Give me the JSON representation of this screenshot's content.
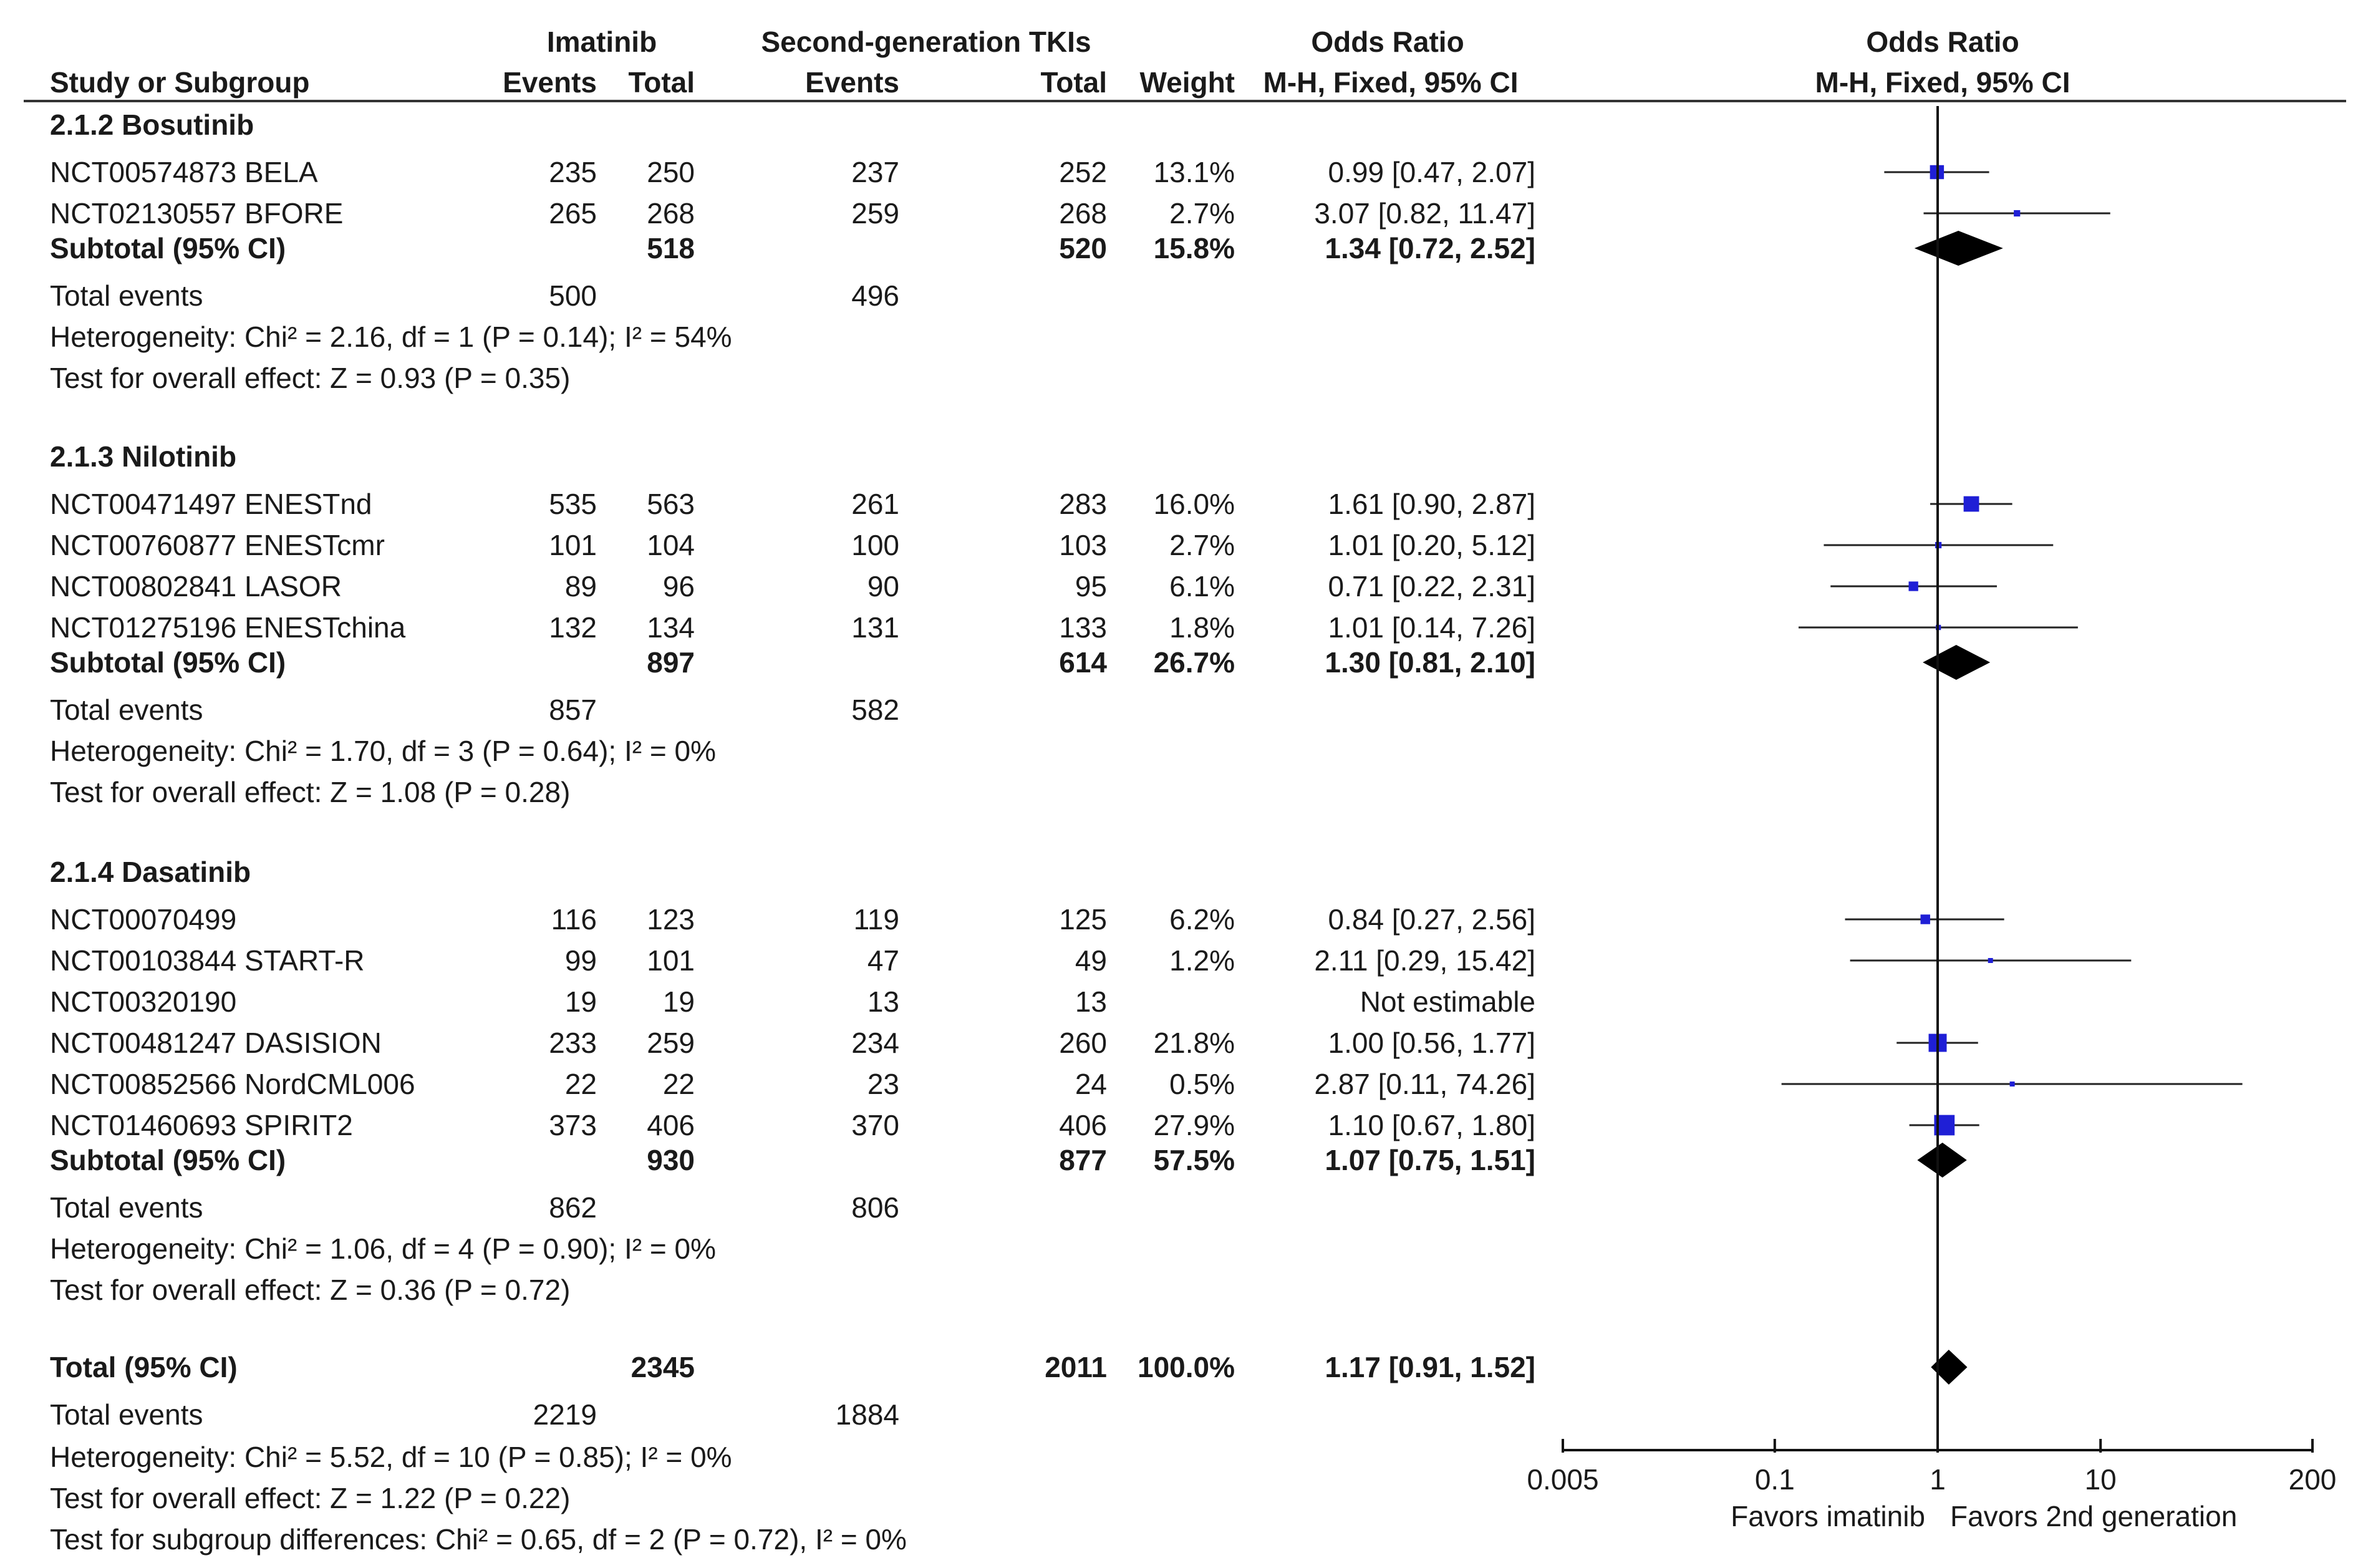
{
  "chart_data": {
    "type": "forest",
    "title": "Odds Ratio M-H, Fixed, 95% CI",
    "header": {
      "col_study": "Study or Subgroup",
      "group1": "Imatinib",
      "group2": "Second-generation TKIs",
      "events1": "Events",
      "total1": "Total",
      "events2": "Events",
      "total2": "Total",
      "weight": "Weight",
      "or_title": "Odds Ratio",
      "or_method": "M-H, Fixed, 95% CI",
      "plot_title": "Odds Ratio",
      "plot_method": "M-H, Fixed, 95% CI"
    },
    "x_axis": {
      "scale": "log",
      "range": [
        0.005,
        200
      ],
      "ticks": [
        {
          "value": 0.005,
          "label": "0.005"
        },
        {
          "value": 0.1,
          "label": "0.1"
        },
        {
          "value": 1,
          "label": "1"
        },
        {
          "value": 10,
          "label": "10"
        },
        {
          "value": 200,
          "label": "200"
        }
      ],
      "left_label": "Favors imatinib",
      "right_label": "Favors 2nd generation"
    },
    "subgroups": [
      {
        "name": "2.1.2 Bosutinib",
        "studies": [
          {
            "name": "NCT00574873 BELA",
            "e1": "235",
            "t1": "250",
            "e2": "237",
            "t2": "252",
            "weight": "13.1%",
            "ci": "0.99 [0.47, 2.07]",
            "or": 0.99,
            "lo": 0.47,
            "hi": 2.07,
            "w": 13.1
          },
          {
            "name": "NCT02130557 BFORE",
            "e1": "265",
            "t1": "268",
            "e2": "259",
            "t2": "268",
            "weight": "2.7%",
            "ci": "3.07 [0.82, 11.47]",
            "or": 3.07,
            "lo": 0.82,
            "hi": 11.47,
            "w": 2.7
          }
        ],
        "subtotal": {
          "label": "Subtotal (95% CI)",
          "t1": "518",
          "t2": "520",
          "weight": "15.8%",
          "ci": "1.34 [0.72, 2.52]",
          "or": 1.34,
          "lo": 0.72,
          "hi": 2.52
        },
        "events": {
          "label": "Total events",
          "e1": "500",
          "e2": "496"
        },
        "heterogeneity": "Heterogeneity: Chi² = 2.16, df = 1 (P = 0.14); I² = 54%",
        "overall": "Test for overall effect: Z = 0.93 (P = 0.35)"
      },
      {
        "name": "2.1.3 Nilotinib",
        "studies": [
          {
            "name": "NCT00471497 ENESTnd",
            "e1": "535",
            "t1": "563",
            "e2": "261",
            "t2": "283",
            "weight": "16.0%",
            "ci": "1.61 [0.90, 2.87]",
            "or": 1.61,
            "lo": 0.9,
            "hi": 2.87,
            "w": 16.0
          },
          {
            "name": "NCT00760877 ENESTcmr",
            "e1": "101",
            "t1": "104",
            "e2": "100",
            "t2": "103",
            "weight": "2.7%",
            "ci": "1.01 [0.20, 5.12]",
            "or": 1.01,
            "lo": 0.2,
            "hi": 5.12,
            "w": 2.7
          },
          {
            "name": "NCT00802841 LASOR",
            "e1": "89",
            "t1": "96",
            "e2": "90",
            "t2": "95",
            "weight": "6.1%",
            "ci": "0.71 [0.22, 2.31]",
            "or": 0.71,
            "lo": 0.22,
            "hi": 2.31,
            "w": 6.1
          },
          {
            "name": "NCT01275196 ENESTchina",
            "e1": "132",
            "t1": "134",
            "e2": "131",
            "t2": "133",
            "weight": "1.8%",
            "ci": "1.01 [0.14, 7.26]",
            "or": 1.01,
            "lo": 0.14,
            "hi": 7.26,
            "w": 1.8
          }
        ],
        "subtotal": {
          "label": "Subtotal (95% CI)",
          "t1": "897",
          "t2": "614",
          "weight": "26.7%",
          "ci": "1.30 [0.81, 2.10]",
          "or": 1.3,
          "lo": 0.81,
          "hi": 2.1
        },
        "events": {
          "label": "Total events",
          "e1": "857",
          "e2": "582"
        },
        "heterogeneity": "Heterogeneity: Chi² = 1.70, df = 3 (P = 0.64); I² = 0%",
        "overall": "Test for overall effect: Z = 1.08 (P = 0.28)"
      },
      {
        "name": "2.1.4 Dasatinib",
        "studies": [
          {
            "name": "NCT00070499",
            "e1": "116",
            "t1": "123",
            "e2": "119",
            "t2": "125",
            "weight": "6.2%",
            "ci": "0.84 [0.27, 2.56]",
            "or": 0.84,
            "lo": 0.27,
            "hi": 2.56,
            "w": 6.2
          },
          {
            "name": "NCT00103844 START-R",
            "e1": "99",
            "t1": "101",
            "e2": "47",
            "t2": "49",
            "weight": "1.2%",
            "ci": "2.11 [0.29, 15.42]",
            "or": 2.11,
            "lo": 0.29,
            "hi": 15.42,
            "w": 1.2
          },
          {
            "name": "NCT00320190",
            "e1": "19",
            "t1": "19",
            "e2": "13",
            "t2": "13",
            "weight": "",
            "ci": "Not estimable",
            "or": null,
            "lo": null,
            "hi": null,
            "w": 0
          },
          {
            "name": "NCT00481247 DASISION",
            "e1": "233",
            "t1": "259",
            "e2": "234",
            "t2": "260",
            "weight": "21.8%",
            "ci": "1.00 [0.56, 1.77]",
            "or": 1.0,
            "lo": 0.56,
            "hi": 1.77,
            "w": 21.8
          },
          {
            "name": "NCT00852566 NordCML006",
            "e1": "22",
            "t1": "22",
            "e2": "23",
            "t2": "24",
            "weight": "0.5%",
            "ci": "2.87 [0.11, 74.26]",
            "or": 2.87,
            "lo": 0.11,
            "hi": 74.26,
            "w": 0.5
          },
          {
            "name": "NCT01460693 SPIRIT2",
            "e1": "373",
            "t1": "406",
            "e2": "370",
            "t2": "406",
            "weight": "27.9%",
            "ci": "1.10 [0.67, 1.80]",
            "or": 1.1,
            "lo": 0.67,
            "hi": 1.8,
            "w": 27.9
          }
        ],
        "subtotal": {
          "label": "Subtotal (95% CI)",
          "t1": "930",
          "t2": "877",
          "weight": "57.5%",
          "ci": "1.07 [0.75, 1.51]",
          "or": 1.07,
          "lo": 0.75,
          "hi": 1.51
        },
        "events": {
          "label": "Total events",
          "e1": "862",
          "e2": "806"
        },
        "heterogeneity": "Heterogeneity: Chi² = 1.06, df = 4 (P = 0.90); I² = 0%",
        "overall": "Test for overall effect: Z = 0.36 (P = 0.72)"
      }
    ],
    "total": {
      "label": "Total (95% CI)",
      "t1": "2345",
      "t2": "2011",
      "weight": "100.0%",
      "ci": "1.17 [0.91, 1.52]",
      "or": 1.17,
      "lo": 0.91,
      "hi": 1.52,
      "events": {
        "label": "Total events",
        "e1": "2219",
        "e2": "1884"
      },
      "heterogeneity": "Heterogeneity: Chi² = 5.52, df = 10 (P = 0.85); I² = 0%",
      "overall": "Test for overall effect: Z = 1.22 (P = 0.22)",
      "subgroup_diff": "Test for subgroup differences: Chi² = 0.65, df = 2 (P = 0.72), I² = 0%"
    },
    "colors": {
      "square": "#1f1fd6",
      "diamond": "#000000",
      "line": "#222222"
    }
  }
}
